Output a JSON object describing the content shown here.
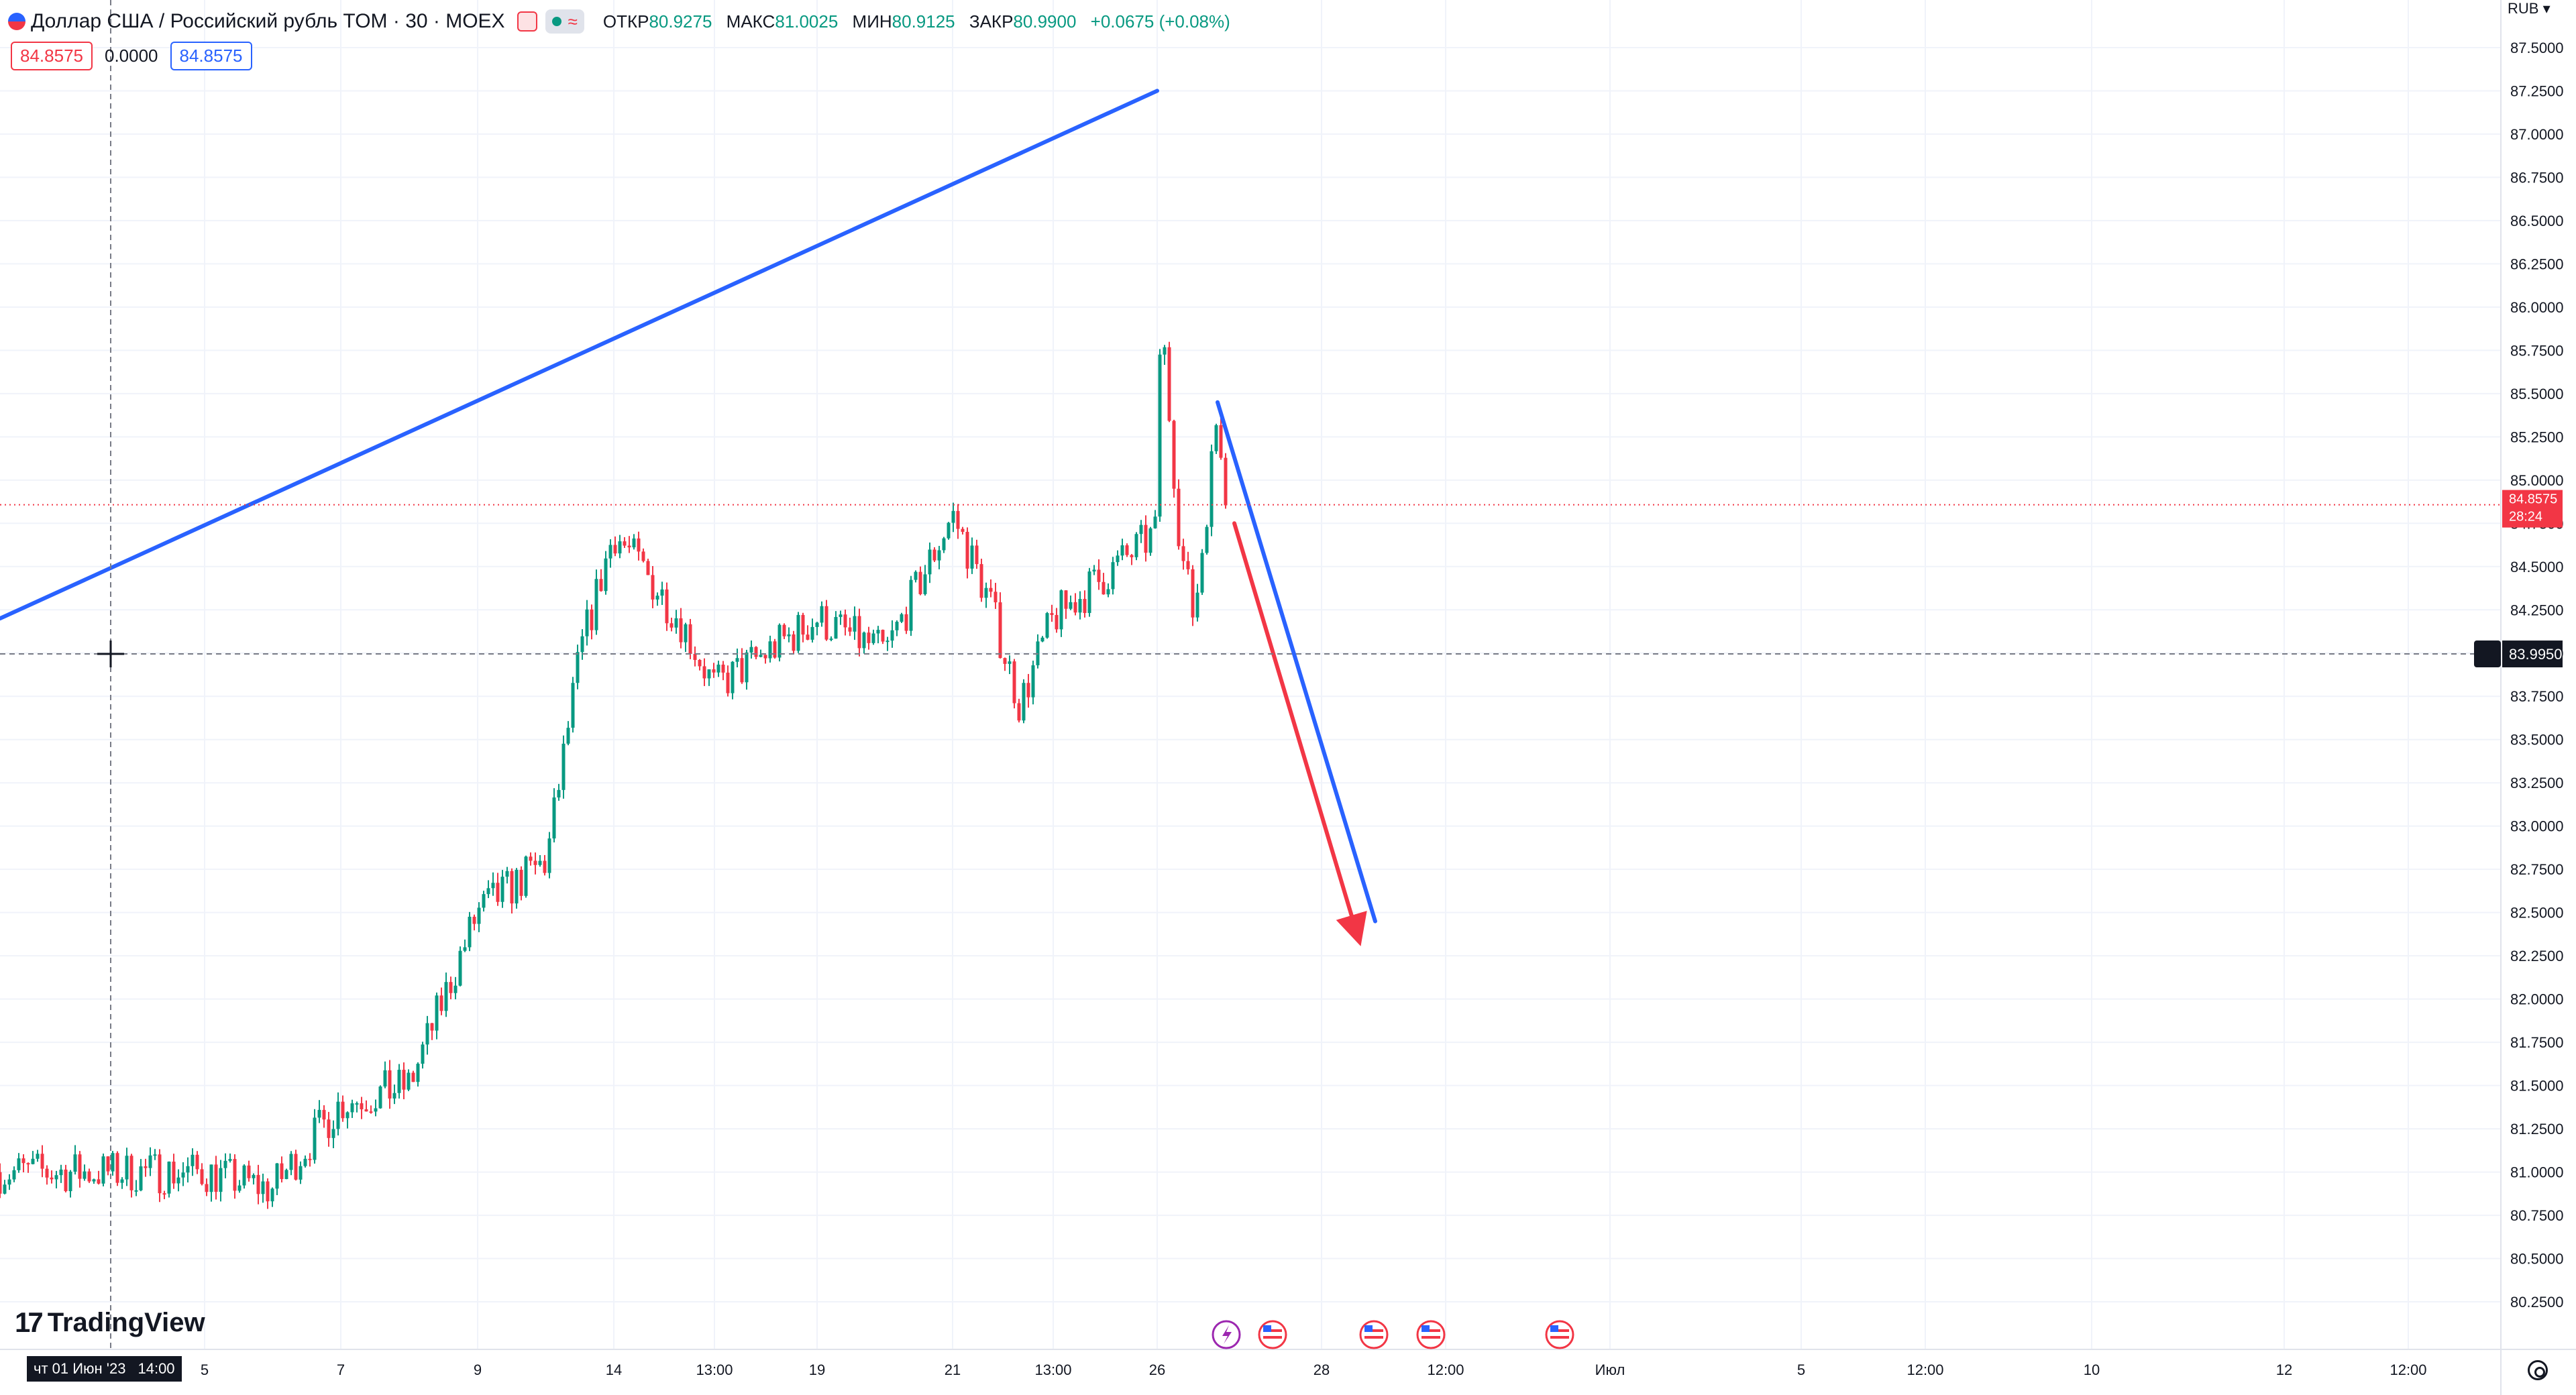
{
  "header": {
    "title": "Доллар США / Российский рубль TOM · 30 · MOEX",
    "open_label": "ОТКР",
    "open_value": "80.9275",
    "high_label": "МАКС",
    "high_value": "81.0025",
    "low_label": "МИН",
    "low_value": "80.9125",
    "close_label": "ЗАКР",
    "close_value": "80.9900",
    "change": "+0.0675 (+0.08%)"
  },
  "indicator_row": {
    "left_value": "84.8575",
    "middle_value": "0.0000",
    "right_value": "84.8575"
  },
  "currency_label": "RUB",
  "crosshair": {
    "price_label": "83.9950",
    "date_label": "чт 01 Июн '23",
    "time_label": "14:00"
  },
  "last_price": {
    "value": "84.8575",
    "countdown": "28:24"
  },
  "logo_text": "TradingView",
  "colors": {
    "up": "#089981",
    "down": "#f23645",
    "grid": "#f0f3fa",
    "drawing_blue": "#2962ff",
    "drawing_red": "#f23645",
    "price_line": "#f23645"
  },
  "chart_data": {
    "type": "candlestick",
    "symbol": "USD/RUB TOM",
    "interval": "30",
    "y_axis": {
      "label": "RUB",
      "ticks": [
        "80.2500",
        "80.5000",
        "80.7500",
        "81.0000",
        "81.2500",
        "81.5000",
        "81.7500",
        "82.0000",
        "82.2500",
        "82.5000",
        "82.7500",
        "83.0000",
        "83.2500",
        "83.5000",
        "83.7500",
        "84.0000",
        "84.2500",
        "84.5000",
        "84.7500",
        "85.0000",
        "85.2500",
        "85.5000",
        "85.7500",
        "86.0000",
        "86.2500",
        "86.5000",
        "86.7500",
        "87.0000",
        "87.2500",
        "87.5000"
      ],
      "range": [
        80.13,
        87.62
      ]
    },
    "x_axis": {
      "ticks": [
        "5",
        "7",
        "9",
        "14",
        "13:00",
        "19",
        "21",
        "13:00",
        "26",
        "28",
        "12:00",
        "Июл",
        "5",
        "12:00",
        "10",
        "12",
        "12:00"
      ]
    },
    "price_path": [
      [
        "5",
        81.0
      ],
      [
        "6",
        80.9
      ],
      [
        "7",
        81.4
      ],
      [
        "8",
        81.5
      ],
      [
        "9",
        82.5
      ],
      [
        "12",
        82.8
      ],
      [
        "13",
        84.0
      ],
      [
        "14",
        84.7
      ],
      [
        "15",
        84.2
      ],
      [
        "16",
        83.8
      ],
      [
        "19",
        84.2
      ],
      [
        "20",
        84.0
      ],
      [
        "21",
        84.8
      ],
      [
        "22",
        84.3
      ],
      [
        "23",
        83.7
      ],
      [
        "23 13:00",
        84.2
      ],
      [
        "26",
        84.7
      ],
      [
        "26 04:00",
        86.0
      ],
      [
        "26 08:00",
        84.6
      ],
      [
        "26 12:00",
        84.2
      ],
      [
        "27",
        85.4
      ],
      [
        "27 04:00",
        84.86
      ]
    ],
    "drawings": [
      {
        "type": "trend-line",
        "color": "blue",
        "from": [
          "26",
          87.25
        ],
        "to": [
          "26 10:00",
          84.2
        ]
      },
      {
        "type": "trend-line",
        "color": "blue",
        "from": [
          "27",
          85.45
        ],
        "to": [
          "28 12:00",
          82.45
        ]
      },
      {
        "type": "arrow",
        "color": "red",
        "from": [
          "27 01:00",
          84.75
        ],
        "to": [
          "28 10:00",
          82.35
        ]
      }
    ],
    "grid": true
  }
}
